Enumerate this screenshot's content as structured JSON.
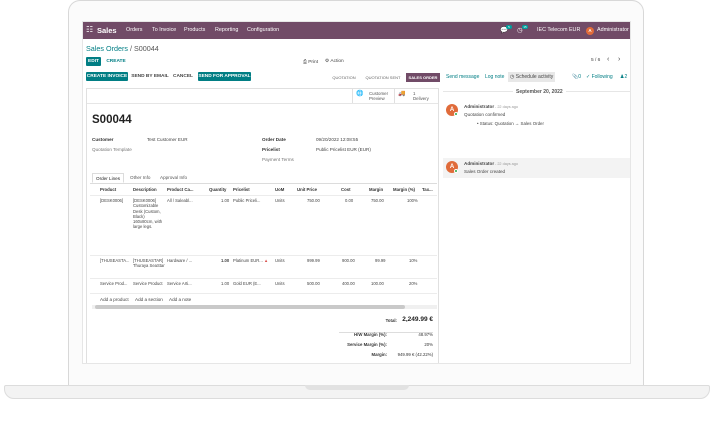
{
  "navbar": {
    "app_name": "Sales",
    "menu": [
      "Orders",
      "To Invoice",
      "Products",
      "Reporting",
      "Configuration"
    ],
    "messages_count": "5",
    "activities_count": "15",
    "company": "IEC Telecom EUR",
    "user_initial": "A",
    "user_name": "Administrator",
    "accent_color": "#714b67"
  },
  "breadcrumb": {
    "parent": "Sales Orders",
    "separator": "/",
    "current": "S00044"
  },
  "control": {
    "edit": "EDIT",
    "create": "CREATE",
    "print": "Print",
    "action": "Action",
    "pager": "5 / 6",
    "primary_color": "#017e84"
  },
  "header_buttons": [
    "CREATE INVOICE",
    "SEND BY EMAIL",
    "CANCEL",
    "SEND FOR APPROVAL"
  ],
  "statusbar": {
    "steps": [
      "QUOTATION",
      "QUOTATION SENT",
      "SALES ORDER"
    ],
    "active": "SALES ORDER"
  },
  "smart_buttons": [
    {
      "icon": "globe-icon",
      "line1": "Customer",
      "line2": "Preview"
    },
    {
      "icon": "truck-icon",
      "line1": "1",
      "line2": "Delivery"
    }
  ],
  "order": {
    "name": "S00044",
    "customer_label": "Customer",
    "customer_value": "Test Customer EUR",
    "template_label": "Quotation Template",
    "order_date_label": "Order Date",
    "order_date_value": "09/20/2022 12:08:55",
    "pricelist_label": "Pricelist",
    "pricelist_value": "Public Pricelist EUR (EUR)",
    "payment_terms_label": "Payment Terms"
  },
  "tabs": [
    "Order Lines",
    "Other Info",
    "Approval Info"
  ],
  "lines": {
    "columns": [
      "Product",
      "Description",
      "Product Ca...",
      "Quantity",
      "Pricelist",
      "UoM",
      "Unit Price",
      "Cost",
      "Margin",
      "Margin (%)",
      "Tax..."
    ],
    "rows": [
      {
        "product": "[DESK0006]",
        "description": "[DESK0006] Customizable Desk (Custom, Black) 160x80cm, with large legs.",
        "category": "All / Saleabl...",
        "quantity": "1.00",
        "pricelist": "Public Priceli...",
        "uom": "Units",
        "unit_price": "750.00",
        "cost": "0.00",
        "margin": "750.00",
        "margin_pct": "100%"
      },
      {
        "product": "[THUSEASTA...",
        "description": "[THUSEASTAR] Thuraya SeaStar",
        "category": "Hardware / ...",
        "quantity": "1.00",
        "pricelist": "Platinum EUR...",
        "uom": "Units",
        "unit_price": "999.99",
        "cost": "900.00",
        "margin": "99.99",
        "margin_pct": "10%"
      },
      {
        "product": "Service Prod...",
        "description": "Service Product",
        "category": "Service Arti...",
        "quantity": "1.00",
        "pricelist": "Gold EUR (E...",
        "uom": "Units",
        "unit_price": "500.00",
        "cost": "400.00",
        "margin": "100.00",
        "margin_pct": "20%"
      }
    ],
    "add_links": [
      "Add a product",
      "Add a section",
      "Add a note"
    ]
  },
  "totals": {
    "total_label": "Total:",
    "total_value": "2,249.99 €",
    "hw_margin_label": "H/W Margin (%):",
    "hw_margin_value": "48.97%",
    "service_margin_label": "Service Margin (%):",
    "service_margin_value": "20%",
    "margin_label": "Margin:",
    "margin_value": "949.99 € (42.22%)"
  },
  "chatter": {
    "send_message": "Send message",
    "log_note": "Log note",
    "schedule_activity": "Schedule activity",
    "attachments": "0",
    "following": "Following",
    "followers": "2",
    "date_separator": "September 20, 2022",
    "messages": [
      {
        "author": "Administrator",
        "time": "- 22 days ago",
        "text": "Quotation confirmed",
        "tracking": "Status: Quotation → Sales Order"
      },
      {
        "author": "Administrator",
        "time": "- 22 days ago",
        "text": "Sales Order created",
        "tracking": ""
      }
    ]
  }
}
